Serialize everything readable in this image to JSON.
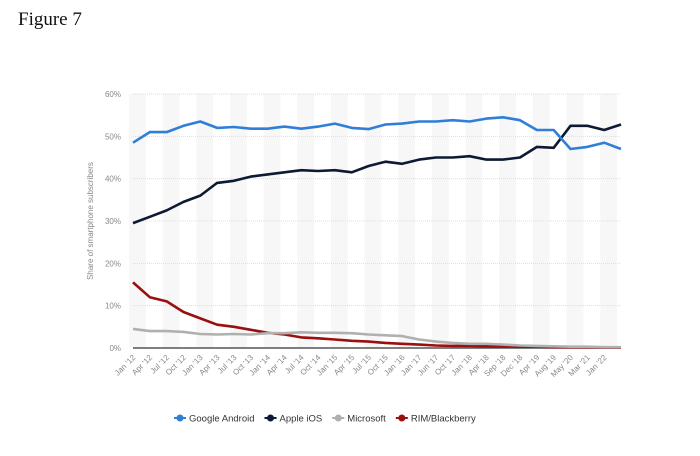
{
  "figure_title": "Figure 7",
  "chart_data": {
    "type": "line",
    "title": "",
    "xlabel": "",
    "ylabel": "Share of smartphone subscribers",
    "ylim": [
      0,
      60
    ],
    "yticks": [
      "0%",
      "10%",
      "20%",
      "30%",
      "40%",
      "50%",
      "60%"
    ],
    "grid": true,
    "legend_position": "bottom",
    "categories": [
      "Jan '12",
      "Apr '12",
      "Jul '12",
      "Oct '12",
      "Jan '13",
      "Apr '13",
      "Jul '13",
      "Oct '13",
      "Jan '14",
      "Apr '14",
      "Jul '14",
      "Oct '14",
      "Jan '15",
      "Apr '15",
      "Jul '15",
      "Oct '15",
      "Jan '16",
      "Jan '17",
      "Jun '17",
      "Oct '17",
      "Jan '18",
      "Apr '18",
      "Sep '18",
      "Dec '18",
      "Apr '19",
      "Aug '19",
      "May '20",
      "Mar '21",
      "Jan '22",
      ""
    ],
    "series": [
      {
        "name": "Google Android",
        "color": "#2f7ed8",
        "values": [
          48.5,
          51,
          51,
          52.5,
          53.5,
          52,
          52.2,
          51.8,
          51.8,
          52.3,
          51.8,
          52.3,
          53,
          52,
          51.7,
          52.8,
          53,
          53.5,
          53.5,
          53.8,
          53.5,
          54.2,
          54.5,
          53.8,
          51.5,
          51.5,
          47,
          47.5,
          48.5,
          47
        ]
      },
      {
        "name": "Apple iOS",
        "color": "#0d1a33",
        "values": [
          29.5,
          31,
          32.5,
          34.5,
          36,
          39,
          39.5,
          40.5,
          41,
          41.5,
          42,
          41.8,
          42,
          41.5,
          43,
          44,
          43.5,
          44.5,
          45,
          45,
          45.3,
          44.5,
          44.5,
          45,
          47.5,
          47.3,
          52.5,
          52.5,
          51.5,
          52.8
        ]
      },
      {
        "name": "Microsoft",
        "color": "#b0b0b0",
        "values": [
          4.5,
          4,
          4,
          3.8,
          3.3,
          3.2,
          3.3,
          3.2,
          3.5,
          3.5,
          3.7,
          3.6,
          3.6,
          3.5,
          3.2,
          3,
          2.8,
          2,
          1.5,
          1.2,
          1,
          1,
          0.8,
          0.6,
          0.5,
          0.4,
          0.3,
          0.3,
          0.2,
          0.2
        ]
      },
      {
        "name": "RIM/Blackberry",
        "color": "#9a0f0f",
        "values": [
          15.5,
          12,
          11,
          8.5,
          7,
          5.5,
          5,
          4.3,
          3.6,
          3.2,
          2.5,
          2.3,
          2,
          1.7,
          1.5,
          1.2,
          1,
          0.8,
          0.6,
          0.5,
          0.5,
          0.4,
          0.4,
          0.3,
          0.3,
          0.2,
          0.2,
          0.2,
          0.1,
          0.1
        ]
      }
    ]
  }
}
